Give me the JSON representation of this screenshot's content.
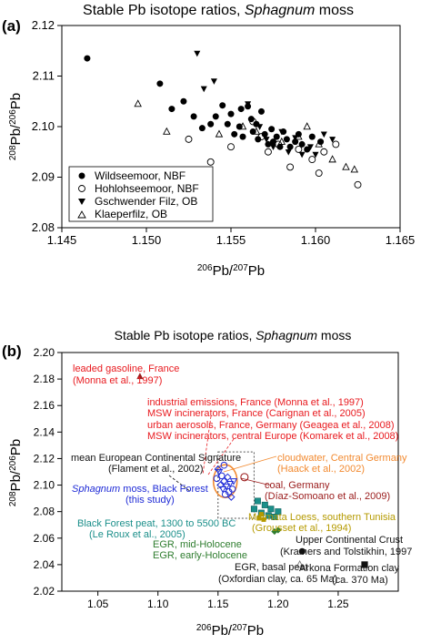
{
  "chart_data": [
    {
      "type": "scatter",
      "panel_label": "(a)",
      "title_plain": "Stable Pb isotope ratios, ",
      "title_italic": "Sphagnum",
      "title_tail": " moss",
      "ylabel_parts": [
        "208",
        "Pb/",
        "206",
        "Pb"
      ],
      "xlabel_parts": [
        "206",
        "Pb/",
        "207",
        "Pb"
      ],
      "xlim": [
        1.145,
        1.165
      ],
      "ylim": [
        2.08,
        2.12
      ],
      "xticks": [
        "1.145",
        "1.150",
        "1.155",
        "1.160",
        "1.165"
      ],
      "yticks": [
        "2.08",
        "2.09",
        "2.10",
        "2.11",
        "2.12"
      ],
      "legend_position": "bottom-left",
      "series": [
        {
          "name": "Wildseemoor, NBF",
          "marker": "filled-circle",
          "points": [
            [
              1.1465,
              2.1135
            ],
            [
              1.1508,
              2.1085
            ],
            [
              1.1515,
              2.1035
            ],
            [
              1.1522,
              2.105
            ],
            [
              1.1528,
              2.102
            ],
            [
              1.1533,
              2.0997
            ],
            [
              1.1538,
              2.1005
            ],
            [
              1.1541,
              2.102
            ],
            [
              1.1545,
              2.1042
            ],
            [
              1.1548,
              2.1005
            ],
            [
              1.155,
              2.1025
            ],
            [
              1.1552,
              2.0985
            ],
            [
              1.1555,
              2.1
            ],
            [
              1.1556,
              2.1035
            ],
            [
              1.1557,
              2.098
            ],
            [
              1.156,
              2.104
            ],
            [
              1.1562,
              2.1015
            ],
            [
              1.1563,
              2.099
            ],
            [
              1.1565,
              2.1005
            ],
            [
              1.1566,
              2.0975
            ],
            [
              1.1568,
              2.103
            ],
            [
              1.157,
              2.0985
            ],
            [
              1.1572,
              2.0965
            ],
            [
              1.1574,
              2.0995
            ],
            [
              1.1575,
              2.097
            ],
            [
              1.1577,
              2.098
            ],
            [
              1.1579,
              2.096
            ],
            [
              1.1581,
              2.099
            ],
            [
              1.1583,
              2.0975
            ],
            [
              1.1585,
              2.096
            ],
            [
              1.1588,
              2.097
            ],
            [
              1.159,
              2.0985
            ],
            [
              1.1592,
              2.0965
            ],
            [
              1.1595,
              2.0955
            ],
            [
              1.1598,
              2.098
            ],
            [
              1.1603,
              2.097
            ]
          ]
        },
        {
          "name": "Hohlohseemoor, NBF",
          "marker": "open-circle",
          "points": [
            [
              1.1525,
              2.0975
            ],
            [
              1.1538,
              2.093
            ],
            [
              1.155,
              2.096
            ],
            [
              1.1563,
              2.101
            ],
            [
              1.1568,
              2.098
            ],
            [
              1.1572,
              2.095
            ],
            [
              1.1578,
              2.0965
            ],
            [
              1.1585,
              2.092
            ],
            [
              1.159,
              2.0955
            ],
            [
              1.1598,
              2.0935
            ],
            [
              1.1602,
              2.0908
            ],
            [
              1.1605,
              2.095
            ],
            [
              1.1612,
              2.0965
            ],
            [
              1.1625,
              2.0885
            ]
          ]
        },
        {
          "name": "Gschwender Filz, OB",
          "marker": "filled-triangle-down",
          "points": [
            [
              1.153,
              2.1145
            ],
            [
              1.1534,
              2.1075
            ],
            [
              1.154,
              2.109
            ],
            [
              1.156,
              2.1045
            ],
            [
              1.1567,
              2.1
            ],
            [
              1.1571,
              2.0975
            ],
            [
              1.1575,
              2.096
            ],
            [
              1.158,
              2.099
            ],
            [
              1.1584,
              2.095
            ],
            [
              1.1588,
              2.0978
            ],
            [
              1.1592,
              2.0945
            ],
            [
              1.1597,
              2.096
            ],
            [
              1.16,
              2.0945
            ],
            [
              1.1605,
              2.0985
            ],
            [
              1.161,
              2.0975
            ]
          ]
        },
        {
          "name": "Klaeperfilz, OB",
          "marker": "open-triangle-up",
          "points": [
            [
              1.1495,
              2.1045
            ],
            [
              1.1512,
              2.099
            ],
            [
              1.1543,
              2.0985
            ],
            [
              1.1557,
              2.1
            ],
            [
              1.1565,
              2.099
            ],
            [
              1.158,
              2.097
            ],
            [
              1.159,
              2.098
            ],
            [
              1.1595,
              2.1
            ],
            [
              1.1602,
              2.0965
            ],
            [
              1.161,
              2.0935
            ],
            [
              1.1618,
              2.092
            ],
            [
              1.1623,
              2.0915
            ]
          ]
        }
      ]
    },
    {
      "type": "scatter",
      "panel_label": "(b)",
      "title_plain": "Stable Pb isotope ratios, ",
      "title_italic": "Sphagnum",
      "title_tail": " moss",
      "ylabel_parts": [
        "208",
        "Pb/",
        "206",
        "Pb"
      ],
      "xlabel_parts": [
        "206",
        "Pb/",
        "207",
        "Pb"
      ],
      "xlim": [
        1.02,
        1.3
      ],
      "ylim": [
        2.02,
        2.2
      ],
      "xticks": [
        "1.05",
        "1.10",
        "1.15",
        "1.20",
        "1.25"
      ],
      "yticks": [
        "2.02",
        "2.04",
        "2.06",
        "2.08",
        "2.10",
        "2.12",
        "2.14",
        "2.16",
        "2.18",
        "2.20"
      ],
      "colors": {
        "red": "#e8191e",
        "orange": "#f28a30",
        "darkred": "#9a1b1b",
        "blue": "#1f2bd6",
        "teal": "#1b8f8a",
        "olive": "#b59a00",
        "green": "#2f7d2f",
        "black": "#111111",
        "gray": "#777777"
      },
      "points": [
        {
          "name": "leaded-gasoline",
          "marker": "triangle-up-filled",
          "color": "#9a1b1b",
          "x": 1.085,
          "y": 2.182
        },
        {
          "name": "cloudwater",
          "marker": "open-circle",
          "color": "#9a1b1b",
          "x": 1.172,
          "y": 2.106
        },
        {
          "name": "coal",
          "marker": "open-circle",
          "color": "#9a1b1b",
          "x": 1.172,
          "y": 2.106
        },
        {
          "name": "egr-mid-holocene",
          "marker": "diamond-filled",
          "color": "#2f7d2f",
          "x": 1.197,
          "y": 2.065
        },
        {
          "name": "egr-early-holocene",
          "marker": "diamond-filled",
          "color": "#2f7d2f",
          "x": 1.2,
          "y": 2.066
        },
        {
          "name": "upper-continental-crust",
          "marker": "filled-circle",
          "color": "#111111",
          "x": 1.22,
          "y": 2.05
        },
        {
          "name": "egr-basal-peat",
          "marker": "open-triangle-up",
          "color": "#777777",
          "x": 1.218,
          "y": 2.04
        },
        {
          "name": "arkona-formation",
          "marker": "filled-square",
          "color": "#111111",
          "x": 1.272,
          "y": 2.04
        }
      ],
      "black_forest_peat": [
        [
          1.18,
          2.082
        ],
        [
          1.183,
          2.088
        ],
        [
          1.186,
          2.079
        ],
        [
          1.189,
          2.085
        ],
        [
          1.192,
          2.077
        ],
        [
          1.194,
          2.082
        ],
        [
          1.197,
          2.076
        ],
        [
          1.2,
          2.08
        ]
      ],
      "matmata_loess": [
        [
          1.186,
          2.078
        ],
        [
          1.188,
          2.074
        ],
        [
          1.184,
          2.075
        ]
      ],
      "sphagnum_points": [
        [
          1.149,
          2.105
        ],
        [
          1.151,
          2.11
        ],
        [
          1.152,
          2.1
        ],
        [
          1.153,
          2.107
        ],
        [
          1.154,
          2.097
        ],
        [
          1.155,
          2.103
        ],
        [
          1.156,
          2.093
        ],
        [
          1.157,
          2.099
        ],
        [
          1.158,
          2.106
        ],
        [
          1.159,
          2.095
        ],
        [
          1.16,
          2.101
        ],
        [
          1.161,
          2.091
        ],
        [
          1.162,
          2.097
        ],
        [
          1.163,
          2.103
        ],
        [
          1.15,
          2.112
        ],
        [
          1.155,
          2.115
        ]
      ],
      "mecs_box": {
        "x": [
          1.15,
          1.18
        ],
        "y": [
          2.075,
          2.125
        ]
      },
      "annotations": {
        "leaded": [
          "leaded gasoline, France",
          "(Monna et al., 1997)"
        ],
        "industrial": [
          "industrial emissions, France (Monna et al., 1997)",
          "MSW incinerators, France (Carignan et al., 2005)",
          "urban aerosols, France, Germany (Geagea et al., 2008)",
          "MSW incinerators, central Europe (Komarek et al., 2008)"
        ],
        "mecs": [
          "mean European Continental Signature",
          "(Flament et al., 2002)"
        ],
        "cloudwater": [
          "cloudwater, Central Germany",
          "(Haack et al., 2002)"
        ],
        "sphagnum_italic": "Sphagnum",
        "sphagnum_rest": " moss, Black Forest",
        "sphagnum_line2": "(this study)",
        "coal": [
          "coal, Germany",
          "(Díaz-Somoano et al., 2009)"
        ],
        "bf_peat": [
          "Black Forest peat, 1300 to 5500 BC",
          "(Le Roux et al., 2005)"
        ],
        "matmata": [
          "Matmata Loess, southern Tunisia",
          "(Grousset et al., 1994)"
        ],
        "egr_mid": "EGR, mid-Holocene",
        "egr_early": "EGR, early-Holocene",
        "ucc": [
          "Upper Continental Crust",
          "(Kramers and Tolstikhin, 1997"
        ],
        "egr_basal": [
          "EGR, basal peat",
          "(Oxfordian clay, ca. 65 Ma)"
        ],
        "arkona": [
          "Arkona Formation clay",
          "(ca. 370 Ma)"
        ]
      }
    }
  ]
}
